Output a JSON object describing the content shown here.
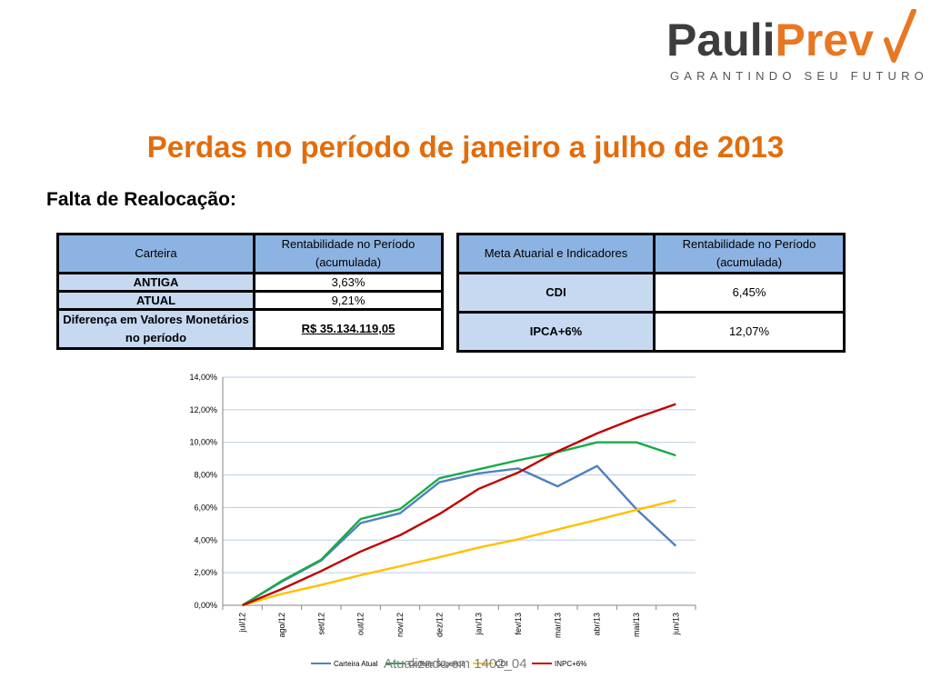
{
  "logo": {
    "part1": "Pauli",
    "part2": "Prev",
    "tagline": "GARANTINDO SEU FUTURO"
  },
  "title": "Perdas no período de janeiro a julho de 2013",
  "subtitle": "Falta de Realocação:",
  "table_left": {
    "headers": [
      "Carteira",
      "Rentabilidade no Período (acumulada)"
    ],
    "rows": [
      [
        "ANTIGA",
        "3,63%"
      ],
      [
        "ATUAL",
        "9,21%"
      ],
      [
        "Diferença em Valores Monetários no período",
        "R$ 35.134.119,05"
      ]
    ]
  },
  "table_right": {
    "headers": [
      "Meta Atuarial e Indicadores",
      "Rentabilidade no Período (acumulada)"
    ],
    "rows": [
      [
        "CDI",
        "6,45%"
      ],
      [
        "IPCA+6%",
        "12,07%"
      ]
    ]
  },
  "colors": {
    "carteira_atual": "#4f81bd",
    "carteira_sugerida": "#1aaa4a",
    "cdi": "#ffc000",
    "inpc": "#c00000",
    "title": "#e36c0a"
  },
  "chart_data": {
    "type": "line",
    "categories": [
      "jul/12",
      "ago/12",
      "set/12",
      "out/12",
      "nov/12",
      "dez/12",
      "jan/13",
      "fev/13",
      "mar/13",
      "abr/13",
      "mai/13",
      "jun/13"
    ],
    "ylim": [
      0,
      14
    ],
    "yticks": [
      "0,00%",
      "2,00%",
      "4,00%",
      "6,00%",
      "8,00%",
      "10,00%",
      "12,00%",
      "14,00%"
    ],
    "grid": true,
    "legend": "bottom",
    "series": [
      {
        "name": "Carteira Atual",
        "color": "#4f81bd",
        "values": [
          0,
          1.45,
          2.75,
          5.05,
          5.65,
          7.55,
          8.1,
          8.4,
          7.3,
          8.55,
          5.9,
          3.65
        ]
      },
      {
        "name": "Carteira Sugerida",
        "color": "#1aaa4a",
        "values": [
          0,
          1.5,
          2.8,
          5.3,
          5.9,
          7.8,
          8.35,
          8.9,
          9.4,
          10.0,
          10.0,
          9.2
        ]
      },
      {
        "name": "CDI",
        "color": "#ffc000",
        "values": [
          0,
          0.7,
          1.25,
          1.85,
          2.4,
          2.95,
          3.55,
          4.05,
          4.65,
          5.25,
          5.85,
          6.45
        ]
      },
      {
        "name": "INPC+6%",
        "color": "#c00000",
        "values": [
          0,
          1.0,
          2.1,
          3.3,
          4.3,
          5.6,
          7.15,
          8.15,
          9.45,
          10.55,
          11.5,
          12.35
        ]
      }
    ]
  },
  "footer": "Atualizado em 1402_04"
}
